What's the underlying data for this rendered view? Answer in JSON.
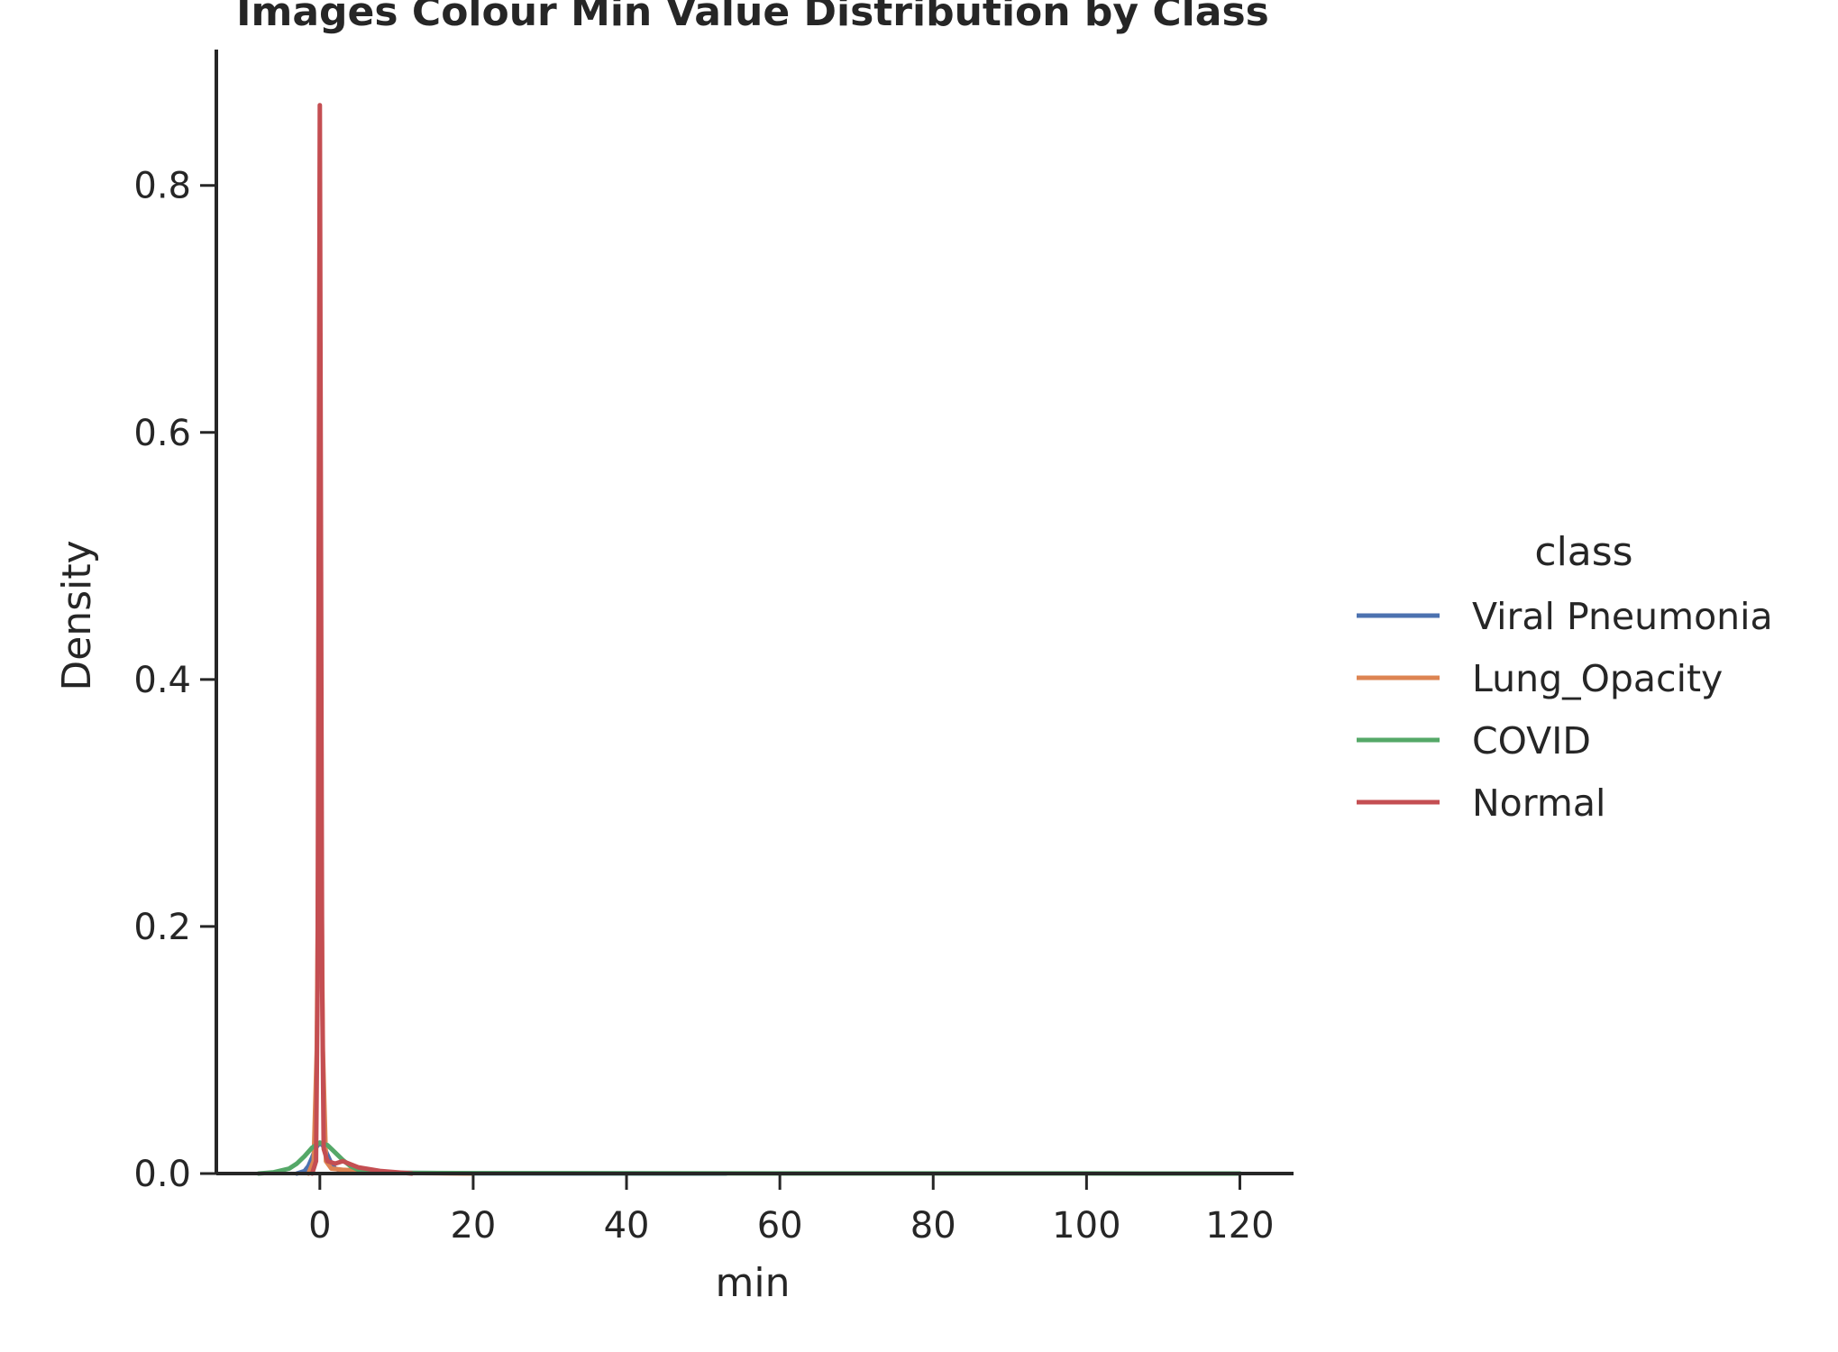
{
  "chart_data": {
    "type": "line",
    "title": "Images Colour Min Value Distribution by Class",
    "xlabel": "min",
    "ylabel": "Density",
    "xlim": [
      -13.5,
      127
    ],
    "ylim": [
      0,
      0.91
    ],
    "xticks": [
      0,
      20,
      40,
      60,
      80,
      100,
      120
    ],
    "xtick_labels": [
      "0",
      "20",
      "40",
      "60",
      "80",
      "100",
      "120"
    ],
    "yticks": [
      0.0,
      0.2,
      0.4,
      0.6,
      0.8
    ],
    "ytick_labels": [
      "0.0",
      "0.2",
      "0.4",
      "0.6",
      "0.8"
    ],
    "grid": false,
    "legend": {
      "title": "class",
      "position": "right"
    },
    "series": [
      {
        "name": "Viral Pneumonia",
        "color": "#4c72b0",
        "x": [
          -3,
          -2,
          -1.5,
          -1,
          -0.5,
          0,
          0.5,
          1,
          1.5,
          2,
          3,
          4,
          6,
          10,
          20,
          40,
          53
        ],
        "y": [
          0,
          0.002,
          0.006,
          0.013,
          0.021,
          0.025,
          0.022,
          0.015,
          0.008,
          0.004,
          0.002,
          0.0015,
          0.001,
          0.0005,
          0.0002,
          0.0001,
          0
        ]
      },
      {
        "name": "Lung_Opacity",
        "color": "#dd8452",
        "x": [
          -1.5,
          -0.8,
          -0.4,
          -0.2,
          0,
          0.2,
          0.4,
          0.8,
          1.5,
          3,
          6,
          10,
          20
        ],
        "y": [
          0,
          0.01,
          0.1,
          0.25,
          0.36,
          0.25,
          0.1,
          0.01,
          0.004,
          0.003,
          0.002,
          0.0005,
          0
        ]
      },
      {
        "name": "COVID",
        "color": "#55a868",
        "x": [
          -8,
          -6,
          -4,
          -3,
          -2,
          -1,
          0,
          1,
          2,
          3,
          4,
          5,
          6,
          8,
          10,
          20,
          40,
          60,
          80,
          100,
          120
        ],
        "y": [
          0,
          0.001,
          0.004,
          0.008,
          0.014,
          0.021,
          0.025,
          0.023,
          0.017,
          0.011,
          0.006,
          0.003,
          0.002,
          0.001,
          0.0005,
          0.0003,
          0.0002,
          0.0001,
          0.0001,
          0.0001,
          0
        ]
      },
      {
        "name": "Normal",
        "color": "#c44e52",
        "x": [
          -1,
          -0.5,
          -0.3,
          -0.15,
          0,
          0.15,
          0.3,
          0.5,
          1,
          2,
          3,
          5,
          8,
          12
        ],
        "y": [
          0,
          0.01,
          0.15,
          0.5,
          0.865,
          0.5,
          0.15,
          0.02,
          0.01,
          0.008,
          0.01,
          0.005,
          0.002,
          0
        ]
      }
    ]
  }
}
